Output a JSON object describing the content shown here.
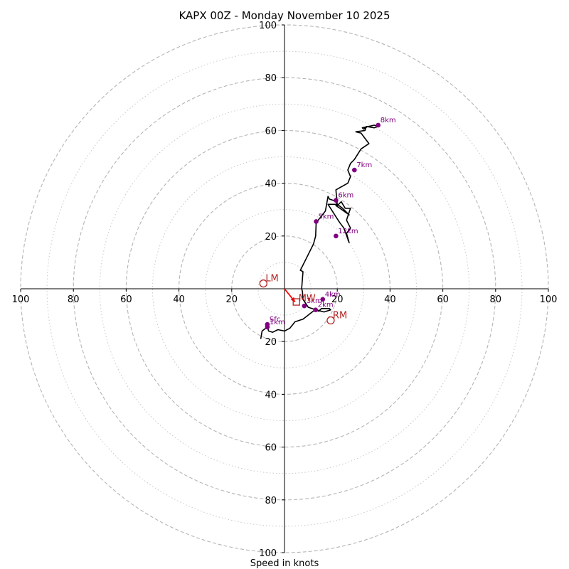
{
  "chart_data": {
    "type": "hodograph",
    "title": "KAPX 00Z - Monday November 10 2025",
    "xlabel": "Speed in knots",
    "max_speed": 100,
    "ring_speeds_dashed": [
      20,
      40,
      60,
      80,
      100
    ],
    "ring_speeds_dotted": [
      10,
      30,
      50,
      70,
      90
    ],
    "axis_ticks": {
      "right": [
        "20",
        "40",
        "60",
        "80",
        "100"
      ],
      "left": [
        "100",
        "80",
        "60",
        "40",
        "20"
      ],
      "up": [
        "20",
        "40",
        "60",
        "80",
        "100"
      ],
      "down": [
        "20",
        "40",
        "60",
        "80",
        "100"
      ]
    },
    "tick_values": [
      20,
      40,
      60,
      80,
      100
    ],
    "trace": {
      "color": "#000000",
      "u": [
        -9.0,
        -8.5,
        -6.5,
        -6.0,
        -4.5,
        -2.5,
        0,
        2.0,
        4.0,
        7.0,
        11.5,
        13.0,
        14.0,
        17.0,
        17.5,
        15.0,
        12.0,
        9.0,
        7.0,
        6.8,
        6.5,
        7.0,
        6.0,
        9.0,
        11.0,
        11.8,
        12.0,
        15.5,
        16.5,
        17.0,
        20.0,
        19.5,
        21.0,
        24.5,
        22.0,
        20.0,
        16.5,
        20.0,
        21.0,
        22.5,
        24.5,
        23.5,
        25.0,
        23.5,
        25.0,
        23.0,
        21.5,
        20.0,
        19.5,
        24.0,
        25.0,
        24.0,
        25.0,
        26.5,
        29.0,
        32.0,
        29.0,
        27.0,
        30.5,
        31.0,
        34.0,
        35.5,
        34.0,
        29.5,
        30.0,
        31.5
      ],
      "v": [
        -19.0,
        -16.0,
        -14.5,
        -16.0,
        -16.5,
        -15.5,
        -16.0,
        -15.0,
        -12.5,
        -11.5,
        -8.0,
        -8.5,
        -7.5,
        -7.5,
        -8.0,
        -8.8,
        -8.0,
        -7.0,
        -4.0,
        -1.0,
        0.0,
        6.5,
        7.0,
        13.0,
        17.0,
        20.0,
        25.0,
        29.5,
        35.0,
        34.0,
        33.0,
        31.5,
        30.5,
        28.0,
        30.5,
        32.0,
        32.0,
        26.5,
        25.0,
        23.0,
        17.5,
        21.0,
        23.0,
        26.0,
        30.5,
        30.5,
        33.0,
        31.5,
        37.5,
        40.0,
        42.5,
        45.0,
        47.5,
        49.0,
        53.0,
        55.0,
        59.0,
        59.5,
        60.0,
        61.5,
        61.0,
        61.5,
        62.0,
        61.0,
        60.5,
        61.5
      ]
    },
    "height_markers": {
      "color": "#800080",
      "points": [
        {
          "label": "Sfc",
          "u": -6.5,
          "v": -13.5
        },
        {
          "label": "1km",
          "u": -6.5,
          "v": -14.5
        },
        {
          "label": "2km",
          "u": 11.8,
          "v": -8.0
        },
        {
          "label": "3km",
          "u": 7.5,
          "v": -6.5
        },
        {
          "label": "4km",
          "u": 14.5,
          "v": -4.0
        },
        {
          "label": "5km",
          "u": 12.0,
          "v": 25.5
        },
        {
          "label": "6km",
          "u": 19.5,
          "v": 33.5
        },
        {
          "label": "7km",
          "u": 26.5,
          "v": 45.0
        },
        {
          "label": "8km",
          "u": 35.5,
          "v": 62.0
        },
        {
          "label": "12km",
          "u": 19.5,
          "v": 20.0
        }
      ]
    },
    "storm_motion": {
      "color": "#b22222",
      "right_mover": {
        "label": "RM",
        "u": 17.5,
        "v": -12.0
      },
      "left_mover": {
        "label": "LM",
        "u": -8.0,
        "v": 2.0
      },
      "mean_wind": {
        "label": "MW",
        "u": 4.5,
        "v": -5.0
      },
      "arrow": {
        "from_u": 0,
        "from_v": 0,
        "to_u": 4.0,
        "to_v": -5.0,
        "color": "#ff0000"
      }
    }
  }
}
